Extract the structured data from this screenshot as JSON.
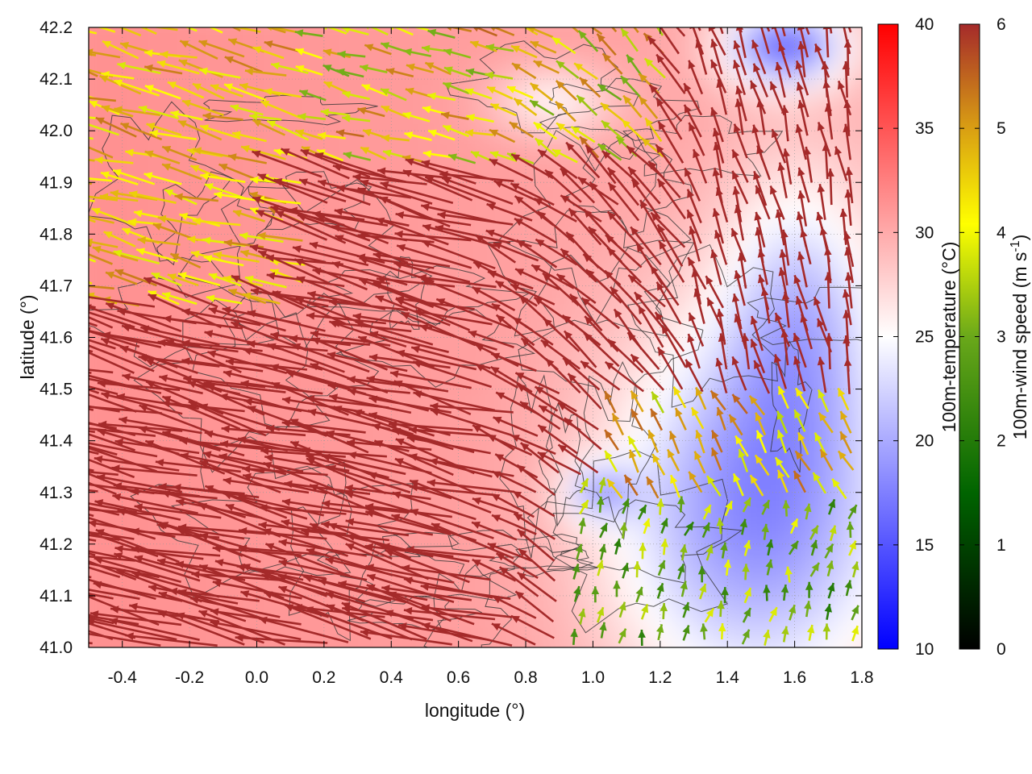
{
  "chart_data": {
    "type": "heatmap",
    "subtype": "temperature field with wind vectors and contour lines",
    "xlabel": "longitude (°)",
    "ylabel": "latitude (°)",
    "xlim": [
      -0.5,
      1.8
    ],
    "ylim": [
      41.0,
      42.2
    ],
    "xticks": [
      "-0.4",
      "-0.2",
      "0.0",
      "0.2",
      "0.4",
      "0.6",
      "0.8",
      "1.0",
      "1.2",
      "1.4",
      "1.6",
      "1.8"
    ],
    "yticks": [
      "41.0",
      "41.1",
      "41.2",
      "41.3",
      "41.4",
      "41.5",
      "41.6",
      "41.7",
      "41.8",
      "41.9",
      "42.0",
      "42.1",
      "42.2"
    ],
    "grid": true,
    "colorbars": [
      {
        "label": "100m-temperature (°C)",
        "range": [
          10,
          40
        ],
        "ticks": [
          "10",
          "15",
          "20",
          "25",
          "30",
          "35",
          "40"
        ],
        "colors": [
          "#0000ff",
          "#ffffff",
          "#ff0000"
        ]
      },
      {
        "label_main": "100m-wind speed (m s",
        "label_sup": "-1",
        "label_end": ")",
        "range": [
          0,
          6
        ],
        "ticks": [
          "0",
          "1",
          "2",
          "3",
          "4",
          "5",
          "6"
        ],
        "colors": [
          "#000000",
          "#006400",
          "#6aa81a",
          "#ffff00",
          "#d79a14",
          "#a52a2a"
        ]
      }
    ],
    "temperature_field": {
      "description_values": [
        {
          "lon": -0.3,
          "lat": 42.0,
          "temp": 32
        },
        {
          "lon": 0.0,
          "lat": 41.5,
          "temp": 31
        },
        {
          "lon": 0.6,
          "lat": 41.8,
          "temp": 30
        },
        {
          "lon": 1.0,
          "lat": 41.3,
          "temp": 19
        },
        {
          "lon": 1.5,
          "lat": 41.1,
          "temp": 22
        },
        {
          "lon": 1.6,
          "lat": 42.15,
          "temp": 15
        }
      ]
    }
  }
}
